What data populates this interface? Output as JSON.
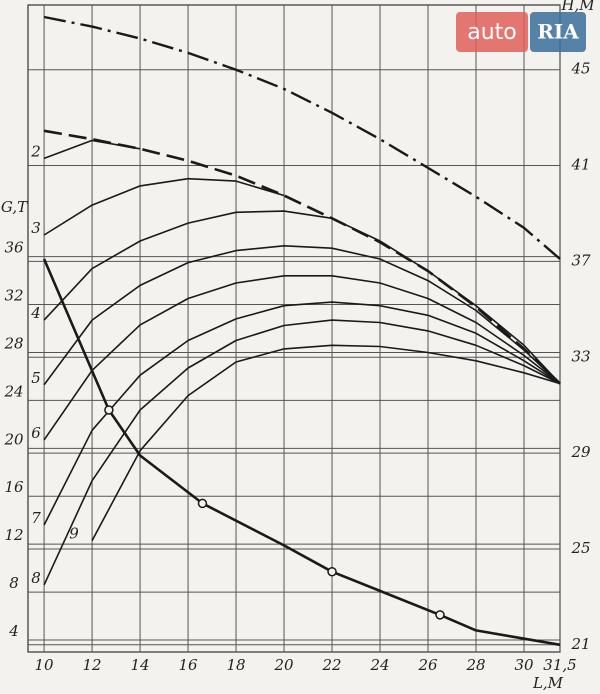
{
  "chart_data": {
    "type": "line",
    "ylabel": "G,T",
    "xlabel": "L,M",
    "y2label": "H,M",
    "watermark": [
      "auto",
      "RIA"
    ],
    "x": [
      10,
      12,
      14,
      16,
      18,
      20,
      22,
      24,
      26,
      28,
      30,
      31.5
    ],
    "xlim": [
      9.33,
      31.5
    ],
    "xticks": [
      10,
      12,
      14,
      16,
      18,
      20,
      22,
      24,
      26,
      28,
      30,
      {
        "value": 31.5,
        "label": "31,5"
      }
    ],
    "ylim": [
      3,
      57
    ],
    "yticks": [
      4,
      8,
      12,
      16,
      20,
      24,
      28,
      32,
      36
    ],
    "y2lim": [
      20.7,
      47.7
    ],
    "y2ticks": [
      21,
      25,
      29,
      33,
      37,
      41,
      45
    ],
    "grid": true,
    "color": "#1a1a1a",
    "series": [
      {
        "style": "dashdot",
        "axis": "y2",
        "values": [
          47.2,
          46.8,
          46.3,
          45.7,
          45,
          44.2,
          43.2,
          42.1,
          40.9,
          39.7,
          38.4,
          37.1
        ]
      },
      {
        "style": "dashed",
        "values": [
          46.5,
          45.8,
          45,
          44,
          42.75,
          41.1,
          39.2,
          37.2,
          34.8,
          31.8,
          28.3,
          25.4
        ]
      },
      {
        "name": "2",
        "style": "thin",
        "values": [
          44.2,
          45.7,
          45,
          null,
          null,
          null,
          null,
          null,
          null,
          null,
          null,
          null
        ]
      },
      {
        "name": "3",
        "style": "thin",
        "values": [
          37.8,
          40.3,
          41.9,
          42.5,
          42.3,
          41.1,
          null,
          null,
          null,
          null,
          null,
          null
        ]
      },
      {
        "name": "4",
        "style": "thin",
        "values": [
          30.7,
          35,
          37.3,
          38.8,
          39.7,
          39.8,
          39.2,
          37.3,
          34.8,
          31.9,
          28.6,
          25.4
        ]
      },
      {
        "name": "5",
        "style": "thin",
        "values": [
          25.3,
          30.7,
          33.6,
          35.5,
          36.5,
          36.9,
          36.7,
          35.8,
          34,
          31.5,
          28.2,
          25.4
        ]
      },
      {
        "name": "6",
        "style": "thin",
        "values": [
          20.7,
          26.5,
          30.3,
          32.5,
          33.8,
          34.4,
          34.4,
          33.8,
          32.5,
          30.5,
          27.75,
          25.4
        ]
      },
      {
        "name": "7",
        "style": "thin",
        "values": [
          13.6,
          21.5,
          26.1,
          29,
          30.8,
          31.9,
          32.2,
          31.9,
          31.1,
          29.6,
          27.3,
          25.4
        ]
      },
      {
        "name": "8",
        "style": "thin",
        "values": [
          8.6,
          17.3,
          23.2,
          26.7,
          29,
          30.25,
          30.7,
          30.5,
          29.8,
          28.6,
          26.9,
          25.4
        ]
      },
      {
        "name": "9",
        "style": "thin",
        "values": [
          null,
          12.3,
          19.8,
          24.4,
          27.2,
          28.3,
          28.6,
          28.5,
          28,
          27.3,
          26.3,
          25.4
        ]
      },
      {
        "style": "thick",
        "x": [
          10,
          12.7,
          14,
          16.6,
          20,
          22,
          26.5,
          28,
          31.5
        ],
        "values": [
          35.8,
          23.2,
          19.4,
          15.4,
          11.9,
          9.7,
          6.1,
          4.8,
          3.6
        ]
      },
      {
        "style": "points",
        "x": [
          12.7,
          16.6,
          22,
          26.5
        ],
        "values": [
          23.2,
          15.4,
          9.7,
          6.1
        ]
      }
    ]
  }
}
